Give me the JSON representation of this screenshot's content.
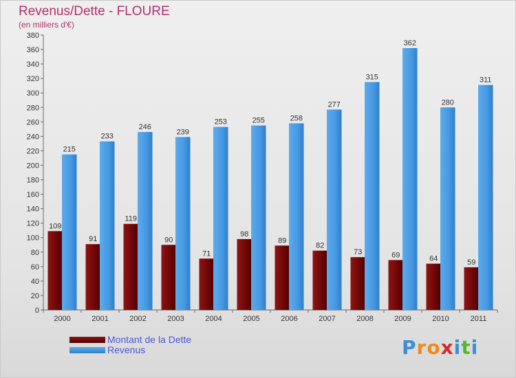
{
  "title": "Revenus/Dette - FLOURE",
  "subtitle": "(en milliers d'€)",
  "colors": {
    "dette": "#7a0a0a",
    "revenus": "#4a9ee8",
    "title": "#b0306a"
  },
  "logo": {
    "text": "Proxiti",
    "letters": [
      "P",
      "r",
      "o",
      "x",
      "i",
      "t",
      "i"
    ],
    "letter_colors": [
      "#3a8fd6",
      "#f08a1a",
      "#f08a1a",
      "#d62a2a",
      "#3a8fd6",
      "#5ab52a",
      "#3a8fd6"
    ]
  },
  "legend": {
    "items": [
      {
        "label": "Montant de la Dette",
        "color": "#7a0a0a"
      },
      {
        "label": "Revenus",
        "color": "#4a9ee8"
      }
    ]
  },
  "chart_data": {
    "type": "bar",
    "title": "Revenus/Dette - FLOURE",
    "subtitle": "(en milliers d'€)",
    "categories": [
      "2000",
      "2001",
      "2002",
      "2003",
      "2004",
      "2005",
      "2006",
      "2007",
      "2008",
      "2009",
      "2010",
      "2011"
    ],
    "series": [
      {
        "name": "Montant de la Dette",
        "color": "#7a0a0a",
        "values": [
          109,
          91,
          119,
          90,
          71,
          98,
          89,
          82,
          73,
          69,
          64,
          59
        ]
      },
      {
        "name": "Revenus",
        "color": "#4a9ee8",
        "values": [
          215,
          233,
          246,
          239,
          253,
          255,
          258,
          277,
          315,
          362,
          280,
          311
        ]
      }
    ],
    "ylim": [
      0,
      380
    ],
    "ytick_step": 20,
    "grid": false,
    "legend_position": "bottom-left"
  }
}
